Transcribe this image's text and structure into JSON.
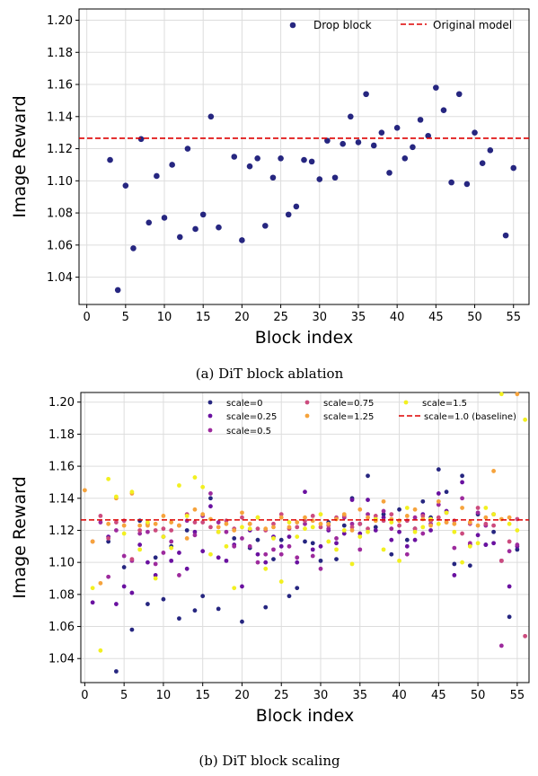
{
  "chart_data": [
    {
      "type": "scatter",
      "caption": "(a) DiT block ablation",
      "xlabel": "Block index",
      "ylabel": "Image Reward",
      "xlim": [
        -1,
        57
      ],
      "ylim": [
        1.023,
        1.207
      ],
      "xticks": [
        "0",
        "5",
        "10",
        "15",
        "20",
        "25",
        "30",
        "35",
        "40",
        "45",
        "50",
        "55"
      ],
      "yticks": [
        "1.04",
        "1.06",
        "1.08",
        "1.10",
        "1.12",
        "1.14",
        "1.16",
        "1.18",
        "1.20"
      ],
      "grid": true,
      "legend_position": "top-right",
      "colors": {
        "drop": "#262680",
        "baseline": "#dd0000"
      },
      "baseline": {
        "name": "Original model",
        "y": 1.1265
      },
      "series": [
        {
          "name": "Drop block",
          "x": [
            3,
            4,
            5,
            6,
            7,
            8,
            9,
            10,
            11,
            12,
            13,
            14,
            15,
            16,
            17,
            19,
            20,
            21,
            22,
            23,
            24,
            25,
            26,
            27,
            28,
            29,
            30,
            31,
            32,
            33,
            34,
            35,
            36,
            37,
            38,
            39,
            40,
            41,
            42,
            43,
            44,
            45,
            46,
            47,
            48,
            49,
            50,
            51,
            52,
            54,
            55
          ],
          "y": [
            1.113,
            1.032,
            1.097,
            1.058,
            1.126,
            1.074,
            1.103,
            1.077,
            1.11,
            1.065,
            1.12,
            1.07,
            1.079,
            1.14,
            1.071,
            1.115,
            1.063,
            1.109,
            1.114,
            1.072,
            1.102,
            1.114,
            1.079,
            1.084,
            1.113,
            1.112,
            1.101,
            1.125,
            1.102,
            1.123,
            1.14,
            1.124,
            1.154,
            1.122,
            1.13,
            1.105,
            1.133,
            1.114,
            1.121,
            1.138,
            1.128,
            1.158,
            1.144,
            1.099,
            1.154,
            1.098,
            1.13,
            1.111,
            1.119,
            1.066,
            1.108
          ]
        }
      ]
    },
    {
      "type": "scatter",
      "caption": "(b) DiT block scaling",
      "xlabel": "Block index",
      "ylabel": "Image Reward",
      "xlim": [
        -0.5,
        56.5
      ],
      "ylim": [
        1.025,
        1.206
      ],
      "xticks": [
        "0",
        "5",
        "10",
        "15",
        "20",
        "25",
        "30",
        "35",
        "40",
        "45",
        "50",
        "55"
      ],
      "yticks": [
        "1.04",
        "1.06",
        "1.08",
        "1.10",
        "1.12",
        "1.14",
        "1.16",
        "1.18",
        "1.20"
      ],
      "grid": true,
      "legend_position": "top-right",
      "baseline": {
        "name": "scale=1.0 (baseline)",
        "y": 1.1265,
        "color": "#dd0000"
      },
      "series": [
        {
          "name": "scale=0",
          "color": "#262680",
          "x": [
            3,
            4,
            5,
            6,
            7,
            8,
            9,
            10,
            11,
            12,
            13,
            14,
            15,
            16,
            17,
            19,
            20,
            21,
            22,
            23,
            24,
            25,
            26,
            27,
            28,
            29,
            30,
            31,
            32,
            33,
            34,
            35,
            36,
            37,
            38,
            39,
            40,
            41,
            42,
            43,
            44,
            45,
            46,
            47,
            48,
            49,
            50,
            51,
            52,
            54,
            55
          ],
          "y": [
            1.113,
            1.032,
            1.097,
            1.058,
            1.126,
            1.074,
            1.103,
            1.077,
            1.11,
            1.065,
            1.12,
            1.07,
            1.079,
            1.14,
            1.071,
            1.115,
            1.063,
            1.109,
            1.114,
            1.072,
            1.102,
            1.114,
            1.079,
            1.084,
            1.113,
            1.112,
            1.101,
            1.125,
            1.102,
            1.123,
            1.14,
            1.124,
            1.154,
            1.122,
            1.13,
            1.105,
            1.133,
            1.114,
            1.121,
            1.138,
            1.128,
            1.158,
            1.144,
            1.099,
            1.154,
            1.098,
            1.13,
            1.111,
            1.119,
            1.066,
            1.108
          ]
        },
        {
          "name": "scale=0.25",
          "color": "#6a11a0",
          "x": [
            1,
            3,
            4,
            5,
            6,
            7,
            8,
            9,
            10,
            11,
            12,
            13,
            14,
            15,
            16,
            17,
            18,
            19,
            20,
            21,
            22,
            23,
            24,
            25,
            26,
            27,
            28,
            29,
            30,
            31,
            32,
            33,
            34,
            35,
            36,
            37,
            38,
            39,
            40,
            41,
            42,
            43,
            44,
            45,
            46,
            47,
            48,
            49,
            50,
            51,
            52,
            53,
            54,
            55
          ],
          "y": [
            1.075,
            1.116,
            1.074,
            1.085,
            1.081,
            1.111,
            1.1,
            1.092,
            1.116,
            1.101,
            1.106,
            1.096,
            1.119,
            1.107,
            1.135,
            1.103,
            1.101,
            1.111,
            1.085,
            1.12,
            1.105,
            1.1,
            1.116,
            1.11,
            1.116,
            1.1,
            1.144,
            1.108,
            1.11,
            1.12,
            1.112,
            1.118,
            1.139,
            1.118,
            1.139,
            1.12,
            1.128,
            1.114,
            1.119,
            1.11,
            1.114,
            1.13,
            1.12,
            1.143,
            1.132,
            1.092,
            1.15,
            1.111,
            1.117,
            1.111,
            1.112,
            1.101,
            1.085,
            1.11
          ]
        },
        {
          "name": "scale=0.5",
          "color": "#9d2a9d",
          "x": [
            2,
            3,
            4,
            5,
            6,
            7,
            8,
            9,
            10,
            11,
            12,
            13,
            14,
            15,
            16,
            17,
            18,
            19,
            20,
            21,
            22,
            23,
            24,
            25,
            26,
            27,
            28,
            29,
            30,
            31,
            32,
            33,
            34,
            35,
            36,
            37,
            38,
            39,
            40,
            41,
            42,
            43,
            44,
            45,
            46,
            47,
            48,
            49,
            50,
            51,
            52,
            53,
            54,
            55
          ],
          "y": [
            1.125,
            1.091,
            1.12,
            1.104,
            1.101,
            1.118,
            1.119,
            1.099,
            1.106,
            1.113,
            1.092,
            1.126,
            1.117,
            1.129,
            1.143,
            1.125,
            1.119,
            1.11,
            1.115,
            1.11,
            1.1,
            1.105,
            1.108,
            1.105,
            1.11,
            1.103,
            1.124,
            1.104,
            1.096,
            1.121,
            1.115,
            1.128,
            1.124,
            1.108,
            1.13,
            1.127,
            1.132,
            1.121,
            1.126,
            1.105,
            1.128,
            1.118,
            1.124,
            1.136,
            1.131,
            1.109,
            1.14,
            1.112,
            1.131,
            1.123,
            1.13,
            1.048,
            1.107,
            1.111
          ]
        },
        {
          "name": "scale=0.75",
          "color": "#cc4b7e",
          "x": [
            1,
            2,
            3,
            4,
            5,
            6,
            7,
            8,
            9,
            10,
            11,
            12,
            13,
            14,
            15,
            16,
            17,
            18,
            19,
            20,
            21,
            22,
            23,
            24,
            25,
            26,
            27,
            28,
            29,
            30,
            31,
            32,
            33,
            34,
            35,
            36,
            37,
            38,
            39,
            40,
            41,
            42,
            43,
            44,
            45,
            46,
            47,
            48,
            49,
            50,
            51,
            52,
            53,
            54,
            55,
            56
          ],
          "y": [
            1.113,
            1.129,
            1.115,
            1.125,
            1.126,
            1.102,
            1.12,
            1.124,
            1.12,
            1.121,
            1.12,
            1.123,
            1.13,
            1.125,
            1.125,
            1.122,
            1.119,
            1.126,
            1.121,
            1.128,
            1.124,
            1.121,
            1.12,
            1.124,
            1.13,
            1.121,
            1.122,
            1.126,
            1.129,
            1.122,
            1.123,
            1.128,
            1.129,
            1.122,
            1.124,
            1.121,
            1.129,
            1.126,
            1.13,
            1.123,
            1.126,
            1.121,
            1.129,
            1.126,
            1.128,
            1.125,
            1.126,
            1.118,
            1.124,
            1.134,
            1.124,
            1.123,
            1.101,
            1.113,
            1.127,
            1.054
          ]
        },
        {
          "name": "scale=1.25",
          "color": "#f6a33c",
          "x": [
            0,
            1,
            2,
            3,
            4,
            5,
            6,
            7,
            8,
            9,
            10,
            11,
            12,
            13,
            14,
            15,
            16,
            17,
            18,
            19,
            20,
            21,
            22,
            23,
            24,
            25,
            26,
            27,
            28,
            29,
            30,
            31,
            32,
            33,
            34,
            35,
            36,
            37,
            38,
            39,
            40,
            41,
            42,
            43,
            44,
            45,
            46,
            47,
            48,
            49,
            50,
            51,
            52,
            53,
            54,
            55
          ],
          "y": [
            1.145,
            1.113,
            1.087,
            1.124,
            1.14,
            1.123,
            1.143,
            1.123,
            1.123,
            1.124,
            1.129,
            1.125,
            1.123,
            1.115,
            1.133,
            1.13,
            1.127,
            1.122,
            1.124,
            1.12,
            1.131,
            1.124,
            1.128,
            1.121,
            1.122,
            1.128,
            1.122,
            1.125,
            1.128,
            1.126,
            1.124,
            1.124,
            1.127,
            1.13,
            1.12,
            1.133,
            1.128,
            1.126,
            1.138,
            1.127,
            1.126,
            1.129,
            1.133,
            1.127,
            1.123,
            1.138,
            1.125,
            1.124,
            1.134,
            1.125,
            1.123,
            1.128,
            1.157,
            1.127,
            1.128,
            1.205
          ]
        },
        {
          "name": "scale=1.5",
          "color": "#f2f020",
          "x": [
            1,
            2,
            3,
            4,
            5,
            6,
            7,
            8,
            9,
            10,
            11,
            12,
            13,
            14,
            15,
            16,
            17,
            18,
            19,
            20,
            21,
            22,
            23,
            24,
            25,
            26,
            27,
            28,
            29,
            30,
            31,
            32,
            33,
            34,
            35,
            36,
            37,
            38,
            39,
            40,
            41,
            42,
            43,
            44,
            45,
            46,
            47,
            48,
            49,
            50,
            51,
            52,
            53,
            54,
            55,
            56
          ],
          "y": [
            1.084,
            1.045,
            1.152,
            1.141,
            1.118,
            1.144,
            1.108,
            1.125,
            1.09,
            1.116,
            1.109,
            1.148,
            1.129,
            1.153,
            1.147,
            1.105,
            1.119,
            1.11,
            1.084,
            1.122,
            1.121,
            1.128,
            1.096,
            1.115,
            1.088,
            1.125,
            1.116,
            1.121,
            1.122,
            1.13,
            1.113,
            1.108,
            1.12,
            1.099,
            1.116,
            1.119,
            1.127,
            1.108,
            1.125,
            1.101,
            1.134,
            1.119,
            1.122,
            1.127,
            1.124,
            1.131,
            1.119,
            1.1,
            1.11,
            1.112,
            1.134,
            1.13,
            1.205,
            1.124,
            1.12,
            1.189
          ]
        }
      ]
    }
  ]
}
